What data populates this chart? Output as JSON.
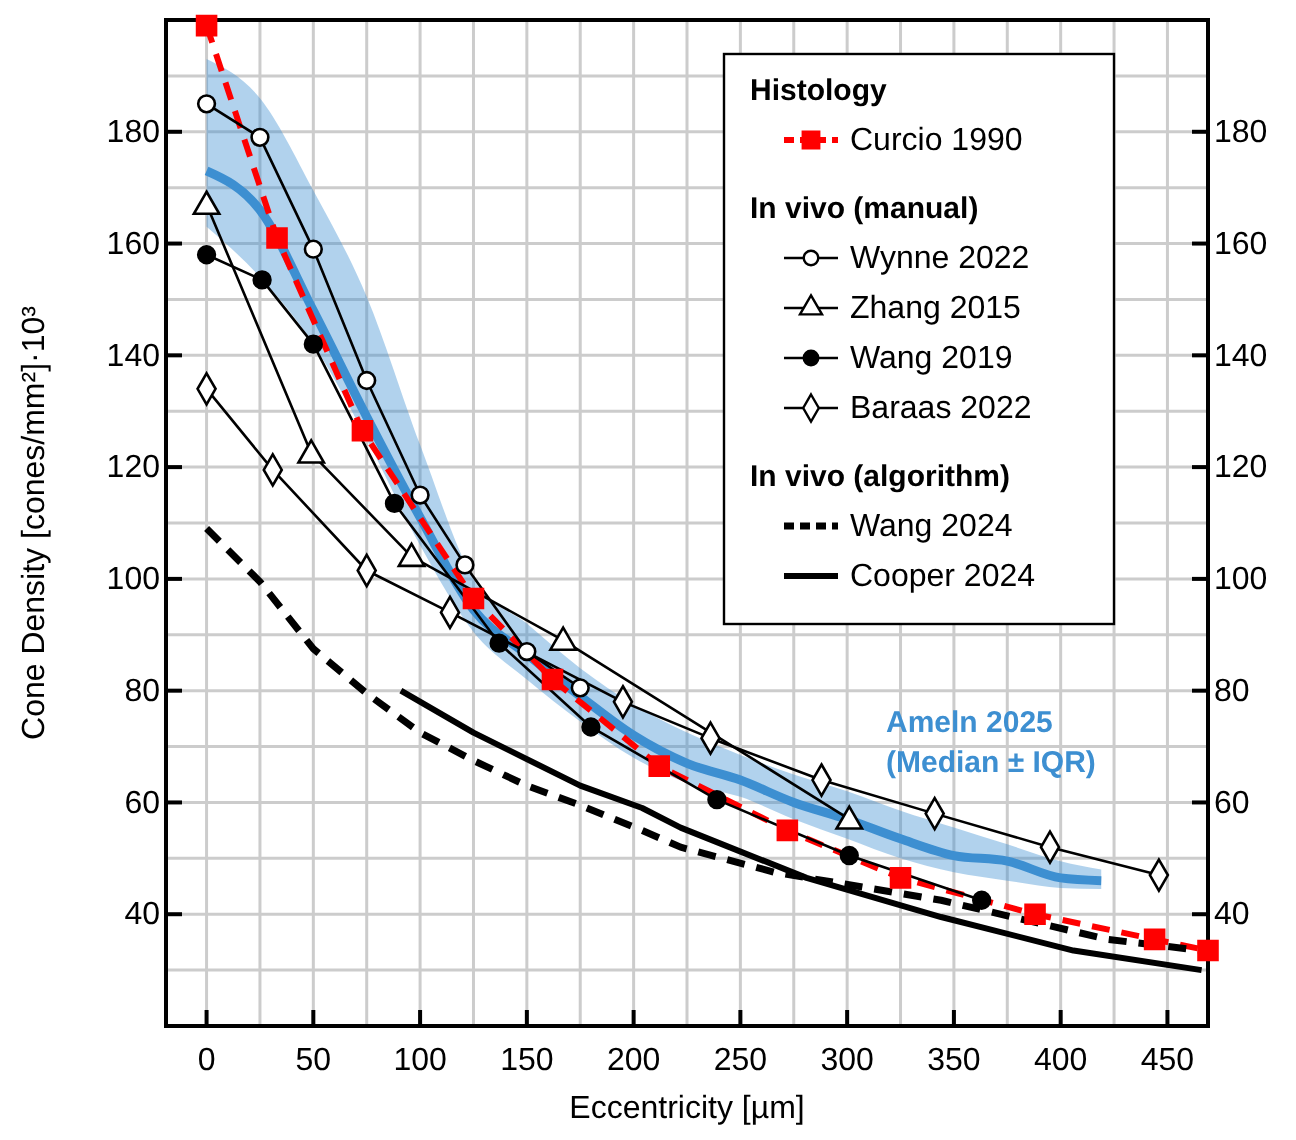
{
  "chart_data": {
    "type": "line",
    "xlabel": "Eccentricity [µm]",
    "ylabel": "Cone Density [cones/mm²]·10³",
    "xlim": [
      -19,
      469
    ],
    "ylim": [
      20,
      200
    ],
    "y2lim": [
      20,
      200
    ],
    "xticks": [
      0,
      {
        "value": 25,
        "label": null
      },
      50,
      {
        "value": 75,
        "label": null
      },
      100,
      {
        "value": 125,
        "label": null
      },
      150,
      {
        "value": 175,
        "label": null
      },
      200,
      {
        "value": 225,
        "label": null
      },
      250,
      {
        "value": 275,
        "label": null
      },
      300,
      {
        "value": 325,
        "label": null
      },
      350,
      {
        "value": 375,
        "label": null
      },
      400,
      {
        "value": 425,
        "label": null
      },
      450
    ],
    "yticks": [
      {
        "value": 30,
        "label": null
      },
      40,
      {
        "value": 50,
        "label": null
      },
      60,
      {
        "value": 70,
        "label": null
      },
      80,
      {
        "value": 90,
        "label": null
      },
      100,
      {
        "value": 110,
        "label": null
      },
      120,
      {
        "value": 130,
        "label": null
      },
      140,
      {
        "value": 150,
        "label": null
      },
      160,
      {
        "value": 170,
        "label": null
      },
      180,
      {
        "value": 190,
        "label": null
      }
    ],
    "y2ticks": [
      40,
      60,
      80,
      100,
      120,
      140,
      160,
      180
    ],
    "grid": true,
    "legend": "top right",
    "annotations": [
      "Histology",
      "In vivo (manual)",
      "In vivo (algorithm)"
    ],
    "series": [
      {
        "name": "Curcio 1990",
        "color": "#ff0000",
        "marker": "square",
        "line_style": "dashed",
        "x": [
          0,
          33,
          73,
          125,
          162,
          212,
          272,
          325,
          388,
          444,
          469
        ],
        "values": [
          199,
          161,
          126.5,
          96.5,
          82,
          66.5,
          55,
          46.5,
          40,
          35.5,
          33.5
        ]
      },
      {
        "name": "Wynne 2022",
        "color": "#000000",
        "marker": "circle",
        "line_style": "solid",
        "x": [
          0,
          25,
          50,
          75,
          100,
          121,
          150,
          175
        ],
        "values": [
          185,
          179,
          159,
          135.5,
          115,
          102.5,
          87,
          80.5
        ]
      },
      {
        "name": "Zhang 2015",
        "color": "#000000",
        "marker": "triangle",
        "line_style": "solid",
        "x": [
          0,
          49,
          96,
          167,
          301
        ],
        "values": [
          167,
          122.5,
          104,
          89,
          57
        ]
      },
      {
        "name": "Wang 2019",
        "color": "#000000",
        "marker": "circle",
        "line_style": "solid",
        "x": [
          0,
          26,
          50,
          88,
          137,
          180,
          239,
          301,
          363
        ],
        "values": [
          158,
          153.5,
          142,
          113.5,
          88.5,
          73.5,
          60.5,
          50.5,
          42.5
        ]
      },
      {
        "name": "Baraas 2022",
        "color": "#000000",
        "marker": "diamond",
        "line_style": "solid",
        "x": [
          0,
          31,
          75,
          114,
          195,
          236,
          288,
          341,
          395,
          446
        ],
        "values": [
          134,
          119.5,
          101.5,
          94,
          78,
          71.5,
          64,
          58,
          52,
          47
        ]
      },
      {
        "name": "Wang 2024",
        "color": "#000000",
        "marker": "none",
        "line_style": "dashed",
        "x": [
          0,
          25,
          50,
          75,
          100,
          125,
          150,
          175,
          204,
          222,
          266,
          344,
          422,
          466
        ],
        "values": [
          109,
          99.5,
          87.5,
          79.5,
          72.5,
          67.5,
          63,
          59.5,
          55,
          52,
          47.5,
          42.5,
          35.5,
          33.5
        ]
      },
      {
        "name": "Cooper 2024",
        "color": "#000000",
        "marker": "none",
        "line_style": "solid",
        "x": [
          91,
          125,
          175,
          204,
          222,
          281,
          344,
          406,
          466
        ],
        "values": [
          80,
          72.5,
          63,
          59,
          55.5,
          46.5,
          39.5,
          33.5,
          30
        ]
      },
      {
        "name": "Ameln 2025 (Median ± IQR)",
        "color": "#3d8fd1",
        "marker": "none",
        "line_style": "solid",
        "x": [
          0,
          25,
          50,
          75,
          100,
          125,
          150,
          175,
          200,
          225,
          250,
          275,
          300,
          325,
          350,
          375,
          400,
          419
        ],
        "values": [
          173,
          166,
          148,
          129,
          111,
          94.5,
          86.5,
          79,
          72,
          67,
          64,
          60,
          57,
          53.5,
          50.5,
          49.5,
          46.5,
          46
        ],
        "upper": [
          193,
          186,
          169.5,
          150.5,
          124,
          100,
          92,
          84,
          77.5,
          72.5,
          68.5,
          65,
          62,
          58.5,
          55.5,
          52.5,
          49.5,
          48
        ],
        "lower": [
          163,
          154,
          142,
          125,
          106,
          90.5,
          82,
          74.5,
          68,
          63.5,
          61,
          57,
          53.5,
          50,
          47.5,
          46,
          44.7,
          44.5
        ]
      }
    ]
  }
}
